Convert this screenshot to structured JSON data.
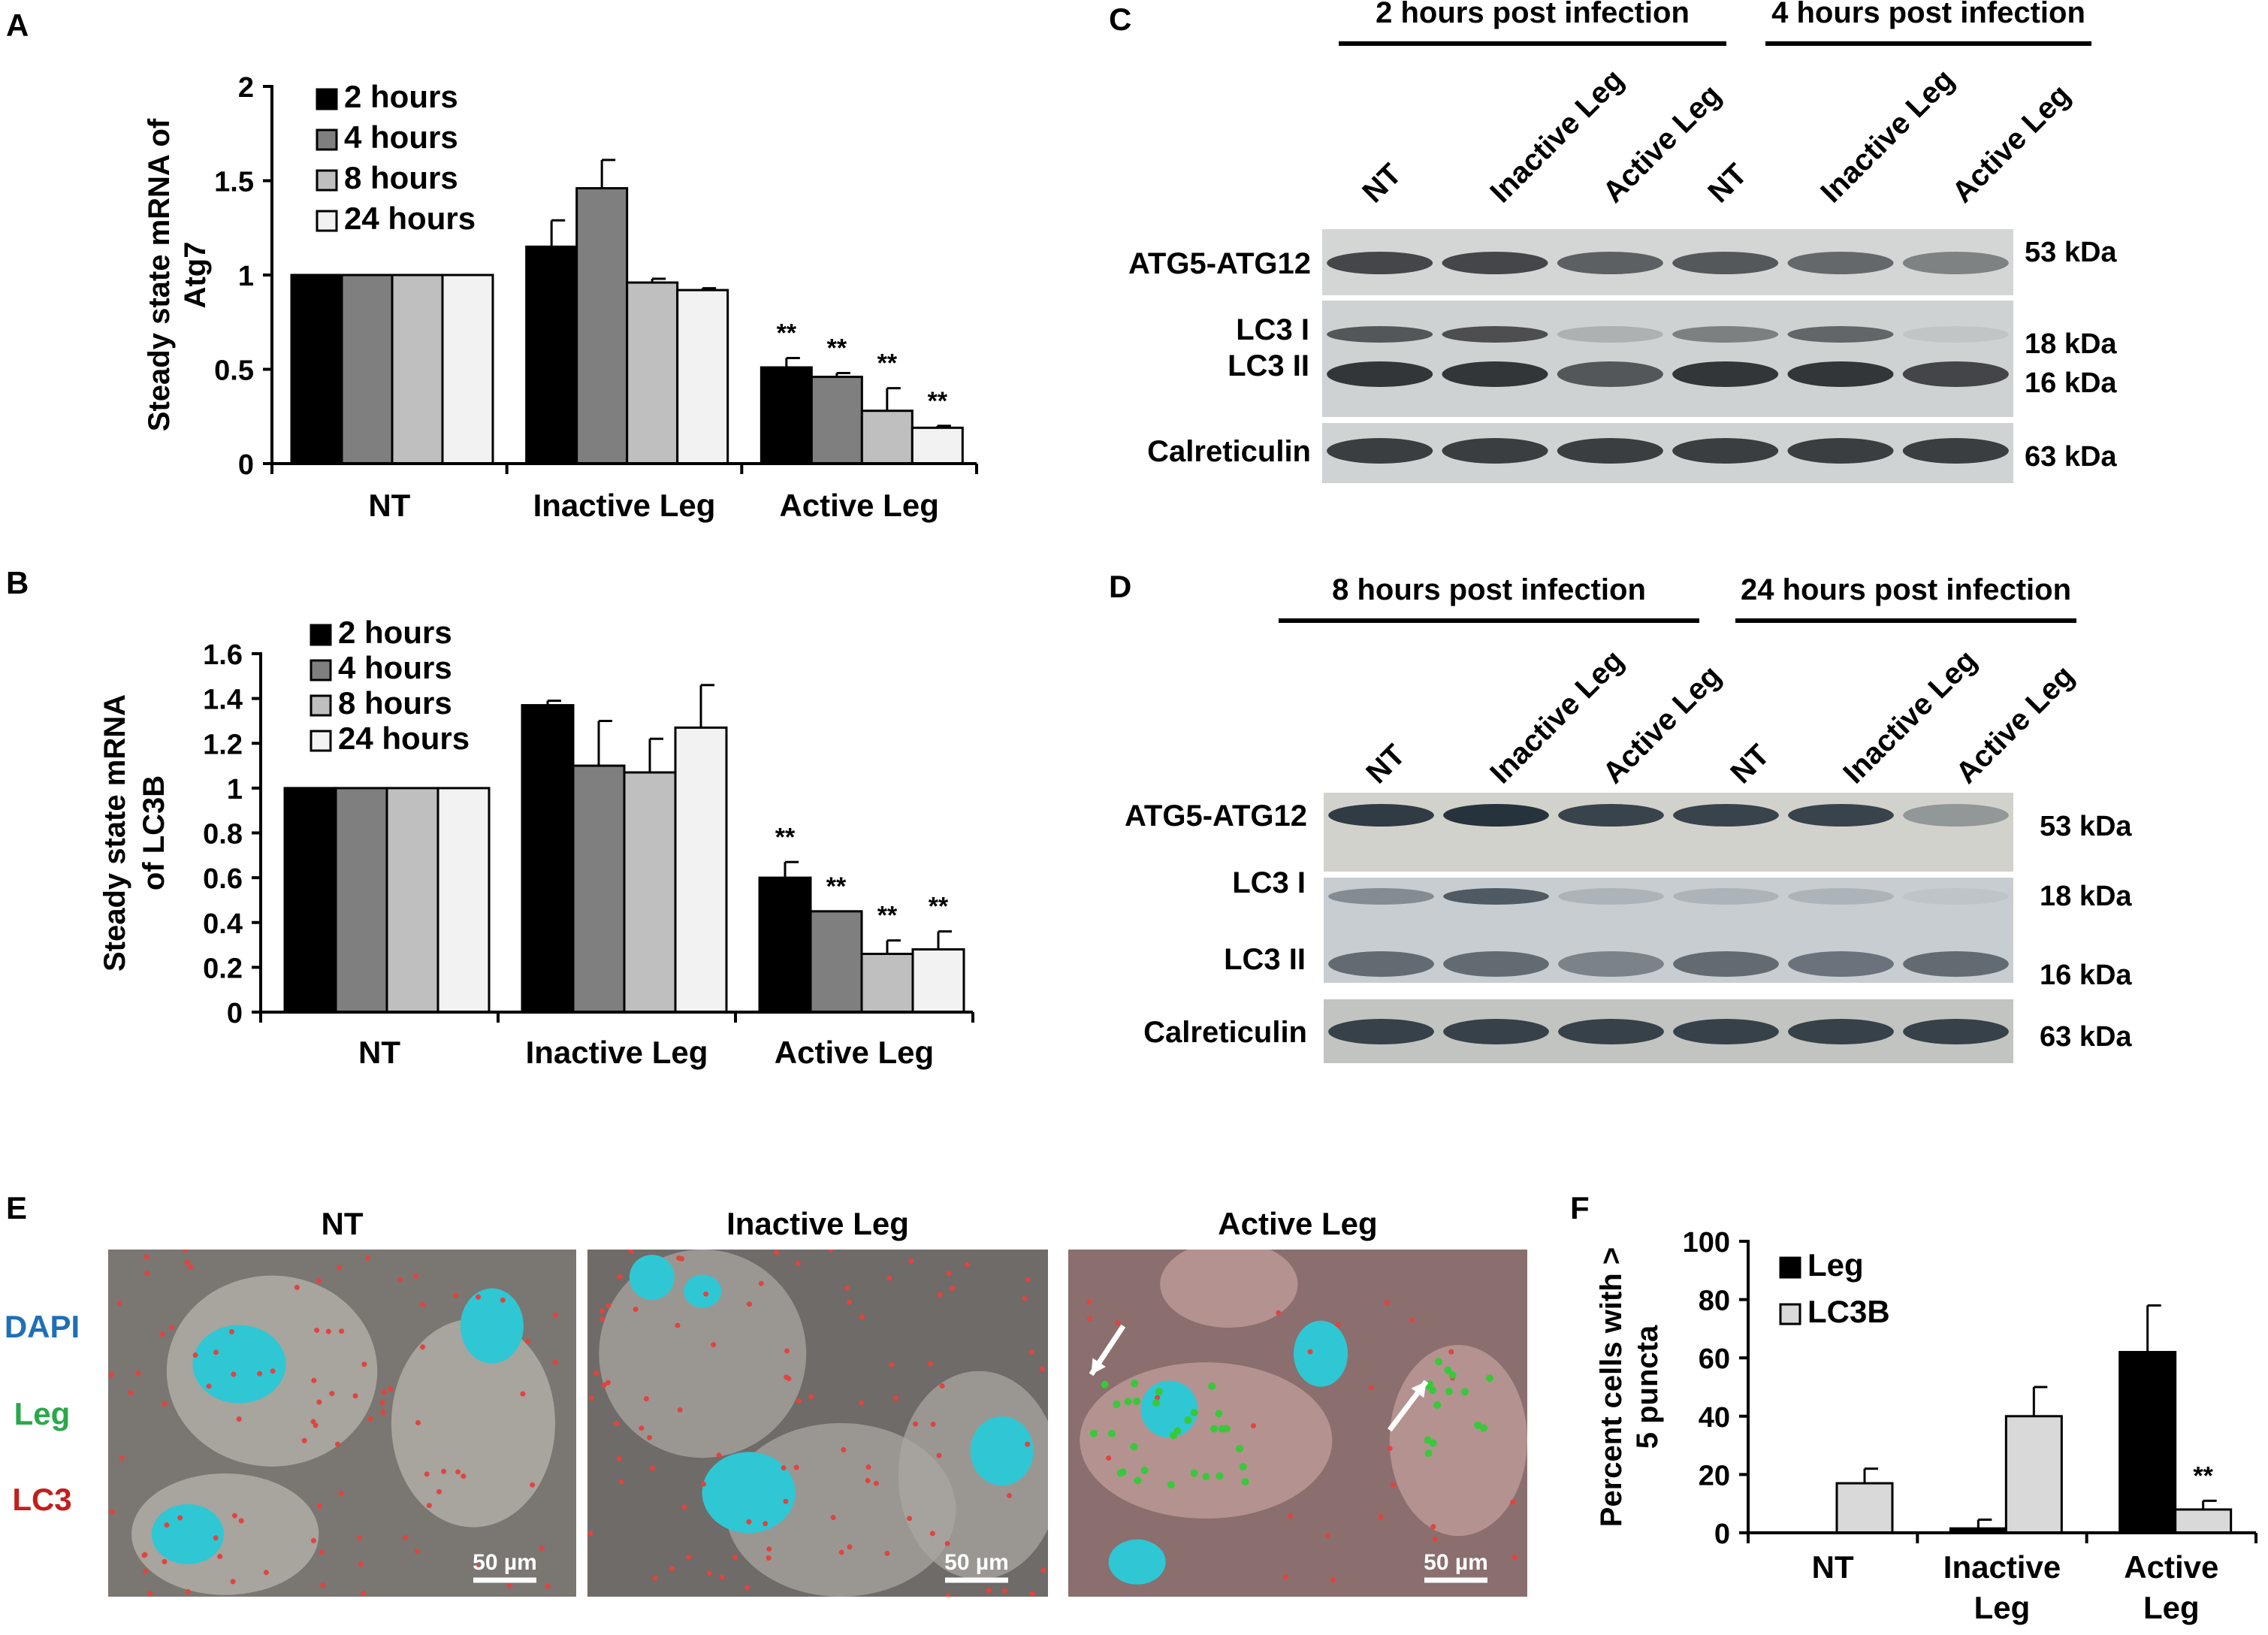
{
  "panel_letters": {
    "a": "A",
    "b": "B",
    "c": "C",
    "d": "D",
    "e": "E",
    "f": "F"
  },
  "legend_hours": [
    "2 hours",
    "4 hours",
    "8 hours",
    "24 hours"
  ],
  "series_colors": [
    "#000000",
    "#7f7f7f",
    "#bfbfbf",
    "#f2f2f2"
  ],
  "chart_data": [
    {
      "panel": "A",
      "type": "bar",
      "categories": [
        "NT",
        "Inactive Leg",
        "Active Leg"
      ],
      "ylabel": "Steady state mRNA of Atg7",
      "ylim": [
        0,
        2
      ],
      "yticks": [
        "0",
        "0.5",
        "1",
        "1.5",
        "2"
      ],
      "series": [
        {
          "name": "2 hours",
          "values": [
            1.0,
            1.15,
            0.51
          ],
          "errors": [
            0,
            0.14,
            0.05
          ]
        },
        {
          "name": "4 hours",
          "values": [
            1.0,
            1.46,
            0.46
          ],
          "errors": [
            0,
            0.15,
            0.02
          ]
        },
        {
          "name": "8 hours",
          "values": [
            1.0,
            0.96,
            0.28
          ],
          "errors": [
            0,
            0.02,
            0.12
          ]
        },
        {
          "name": "24 hours",
          "values": [
            1.0,
            0.92,
            0.19
          ],
          "errors": [
            0,
            0.01,
            0.01
          ]
        }
      ],
      "significance": [
        [
          null,
          null,
          "**"
        ],
        [
          null,
          null,
          "**"
        ],
        [
          null,
          null,
          "**"
        ],
        [
          null,
          null,
          "**"
        ]
      ]
    },
    {
      "panel": "B",
      "type": "bar",
      "categories": [
        "NT",
        "Inactive Leg",
        "Active Leg"
      ],
      "ylabel": "Steady state mRNA of LC3B",
      "ylim": [
        0,
        1.6
      ],
      "yticks": [
        "0",
        "0.2",
        "0.4",
        "0.6",
        "0.8",
        "1",
        "1.2",
        "1.4",
        "1.6"
      ],
      "series": [
        {
          "name": "2 hours",
          "values": [
            1.0,
            1.37,
            0.6
          ],
          "errors": [
            0,
            0.02,
            0.07
          ]
        },
        {
          "name": "4 hours",
          "values": [
            1.0,
            1.1,
            0.45
          ],
          "errors": [
            0,
            0.2,
            0
          ]
        },
        {
          "name": "8 hours",
          "values": [
            1.0,
            1.07,
            0.26
          ],
          "errors": [
            0,
            0.15,
            0.06
          ]
        },
        {
          "name": "24 hours",
          "values": [
            1.0,
            1.27,
            0.28
          ],
          "errors": [
            0,
            0.19,
            0.08
          ]
        }
      ],
      "significance": [
        [
          null,
          null,
          "**"
        ],
        [
          null,
          null,
          "**"
        ],
        [
          null,
          null,
          "**"
        ],
        [
          null,
          null,
          "**"
        ]
      ]
    },
    {
      "panel": "F",
      "type": "bar",
      "categories": [
        "NT",
        "Inactive Leg",
        "Active Leg"
      ],
      "ylabel": "Percent cells with > 5 puncta",
      "ylim": [
        0,
        100
      ],
      "yticks": [
        "0",
        "20",
        "40",
        "60",
        "80",
        "100"
      ],
      "series": [
        {
          "name": "Leg",
          "values": [
            0,
            1.5,
            62
          ],
          "errors": [
            0,
            3,
            16
          ]
        },
        {
          "name": "LC3B",
          "values": [
            17,
            40,
            8
          ],
          "errors": [
            5,
            10,
            3
          ]
        }
      ],
      "significance": [
        [
          null,
          null,
          null
        ],
        [
          null,
          null,
          "**"
        ]
      ]
    }
  ],
  "blot_c": {
    "groups": [
      "2 hours post infection",
      "4 hours post infection"
    ],
    "lanes": [
      "NT",
      "Inactive Leg",
      "Active Leg",
      "NT",
      "Inactive Leg",
      "Active Leg"
    ],
    "row_labels": [
      "ATG5-ATG12",
      "LC3 I",
      "LC3 II",
      "Calreticulin"
    ],
    "kda": [
      "53 kDa",
      "18 kDa",
      "16 kDa",
      "63 kDa"
    ],
    "intensity": {
      "atg5": [
        0.85,
        0.85,
        0.7,
        0.75,
        0.65,
        0.5
      ],
      "lc3i": [
        0.75,
        0.8,
        0.2,
        0.5,
        0.65,
        0.08
      ],
      "lc3ii": [
        0.95,
        0.95,
        0.75,
        0.95,
        0.95,
        0.85
      ],
      "calr": [
        0.9,
        0.9,
        0.9,
        0.9,
        0.9,
        0.9
      ]
    }
  },
  "blot_d": {
    "groups": [
      "8 hours post infection",
      "24 hours post infection"
    ],
    "lanes": [
      "NT",
      "Inactive Leg",
      "Active Leg",
      "NT",
      "Inactive Leg",
      "Active Leg"
    ],
    "row_labels": [
      "ATG5-ATG12",
      "LC3 I",
      "LC3 II",
      "Calreticulin"
    ],
    "kda": [
      "53 kDa",
      "18 kDa",
      "16 kDa",
      "63 kDa"
    ],
    "intensity": {
      "atg5": [
        0.9,
        0.95,
        0.85,
        0.85,
        0.85,
        0.35
      ],
      "lc3i": [
        0.4,
        0.7,
        0.15,
        0.15,
        0.15,
        0.05
      ],
      "lc3ii": [
        0.6,
        0.6,
        0.45,
        0.6,
        0.55,
        0.6
      ],
      "calr": [
        0.85,
        0.85,
        0.85,
        0.85,
        0.85,
        0.85
      ]
    }
  },
  "panel_e": {
    "titles": [
      "NT",
      "Inactive Leg",
      "Active Leg"
    ],
    "stains": [
      "DAPI",
      "Leg",
      "LC3"
    ],
    "stain_colors": [
      "#1f6fb5",
      "#2aa84a",
      "#c0201e"
    ],
    "scale_bar": "50 µm"
  }
}
